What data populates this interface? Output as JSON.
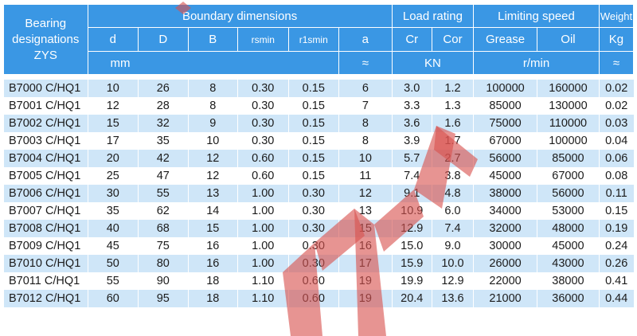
{
  "header": {
    "designation": "Bearing designations ZYS",
    "boundary": "Boundary dimensions",
    "load": "Load rating",
    "speed": "Limiting speed",
    "weight": "Weight",
    "sym_d": "d",
    "sym_D": "D",
    "sym_B": "B",
    "sym_rsmin": "rsmin",
    "sym_r1smin": "r1smin",
    "sym_a": "a",
    "sym_cr": "Cr",
    "sym_cor": "Cor",
    "sym_grease": "Grease",
    "sym_oil": "Oil",
    "sym_kg": "Kg",
    "unit_mm": "mm",
    "unit_a": "≈",
    "unit_kn": "KN",
    "unit_rmin": "r/min",
    "unit_weight": "≈"
  },
  "rows": [
    [
      "B7000 C/HQ1",
      "10",
      "26",
      "8",
      "0.30",
      "0.15",
      "6",
      "3.0",
      "1.2",
      "100000",
      "160000",
      "0.02"
    ],
    [
      "B7001 C/HQ1",
      "12",
      "28",
      "8",
      "0.30",
      "0.15",
      "7",
      "3.3",
      "1.3",
      "85000",
      "130000",
      "0.02"
    ],
    [
      "B7002 C/HQ1",
      "15",
      "32",
      "9",
      "0.30",
      "0.15",
      "8",
      "3.6",
      "1.6",
      "75000",
      "110000",
      "0.03"
    ],
    [
      "B7003 C/HQ1",
      "17",
      "35",
      "10",
      "0.30",
      "0.15",
      "8",
      "3.9",
      "1.7",
      "67000",
      "100000",
      "0.04"
    ],
    [
      "B7004 C/HQ1",
      "20",
      "42",
      "12",
      "0.60",
      "0.15",
      "10",
      "5.7",
      "2.7",
      "56000",
      "85000",
      "0.06"
    ],
    [
      "B7005 C/HQ1",
      "25",
      "47",
      "12",
      "0.60",
      "0.15",
      "11",
      "7.4",
      "3.8",
      "45000",
      "67000",
      "0.08"
    ],
    [
      "B7006 C/HQ1",
      "30",
      "55",
      "13",
      "1.00",
      "0.30",
      "12",
      "9.1",
      "4.8",
      "38000",
      "56000",
      "0.11"
    ],
    [
      "B7007 C/HQ1",
      "35",
      "62",
      "14",
      "1.00",
      "0.30",
      "13",
      "10.9",
      "6.0",
      "34000",
      "53000",
      "0.15"
    ],
    [
      "B7008 C/HQ1",
      "40",
      "68",
      "15",
      "1.00",
      "0.30",
      "15",
      "12.9",
      "7.4",
      "32000",
      "48000",
      "0.19"
    ],
    [
      "B7009 C/HQ1",
      "45",
      "75",
      "16",
      "1.00",
      "0.30",
      "16",
      "15.0",
      "9.0",
      "30000",
      "45000",
      "0.24"
    ],
    [
      "B7010 C/HQ1",
      "50",
      "80",
      "16",
      "1.00",
      "0.30",
      "17",
      "15.9",
      "10.0",
      "26000",
      "43000",
      "0.26"
    ],
    [
      "B7011 C/HQ1",
      "55",
      "90",
      "18",
      "1.10",
      "0.60",
      "19",
      "19.9",
      "12.9",
      "22000",
      "38000",
      "0.41"
    ],
    [
      "B7012 C/HQ1",
      "60",
      "95",
      "18",
      "1.10",
      "0.60",
      "19",
      "20.4",
      "13.6",
      "21000",
      "36000",
      "0.44"
    ]
  ],
  "colors": {
    "header_bg": "#3a97e4",
    "stripe": "#cfe6f8",
    "watermark": "#d9534f"
  }
}
